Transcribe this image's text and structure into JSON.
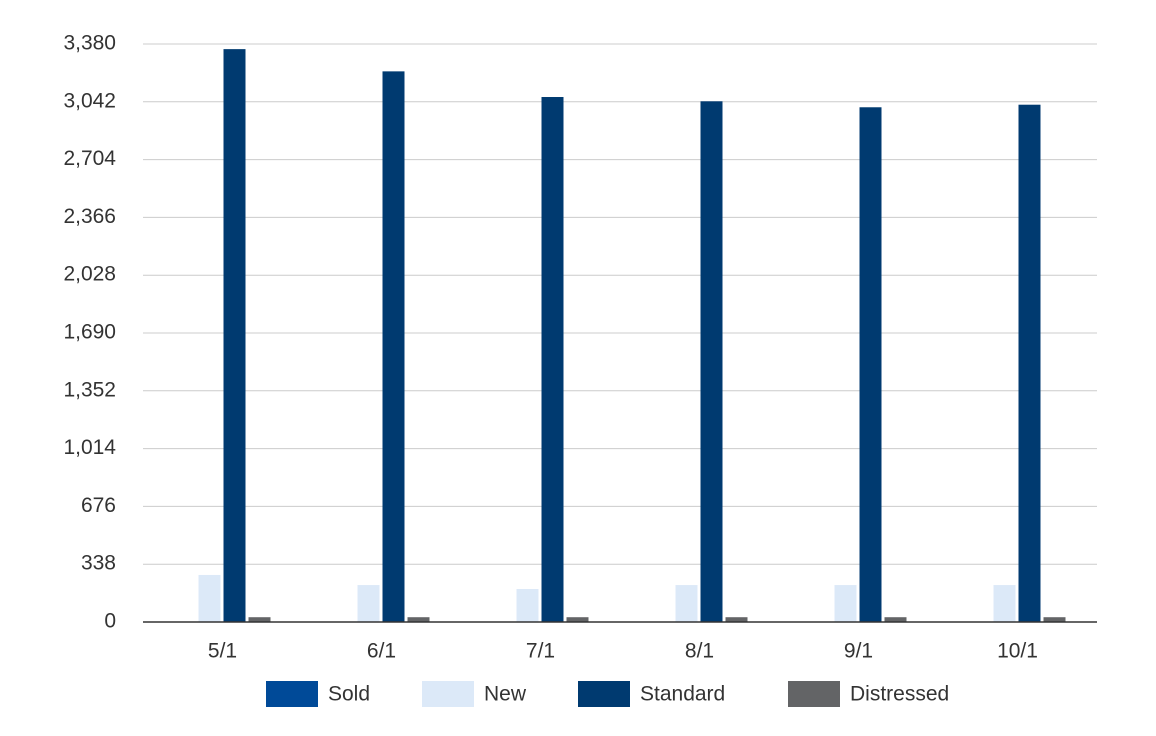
{
  "chart_data": {
    "type": "bar",
    "categories": [
      "5/1",
      "6/1",
      "7/1",
      "8/1",
      "9/1",
      "10/1"
    ],
    "series": [
      {
        "name": "Sold",
        "color": "#004a98",
        "values": [
          0,
          0,
          0,
          0,
          0,
          0
        ]
      },
      {
        "name": "New",
        "color": "#dce9f8",
        "values": [
          275,
          216,
          193,
          216,
          216,
          216
        ]
      },
      {
        "name": "Standard",
        "color": "#003a70",
        "values": [
          3350,
          3220,
          3070,
          3045,
          3010,
          3025
        ]
      },
      {
        "name": "Distressed",
        "color": "#636466",
        "values": [
          28,
          28,
          28,
          28,
          28,
          28
        ]
      }
    ],
    "ylim": [
      0,
      3380
    ],
    "yticks": [
      0,
      338,
      676,
      {
        "value": 1014,
        "label": "1,014"
      },
      {
        "value": 1352,
        "label": "1,352"
      },
      {
        "value": 1690,
        "label": "1,690"
      },
      {
        "value": 2028,
        "label": "2,028"
      },
      {
        "value": 2366,
        "label": "2,366"
      },
      {
        "value": 2704,
        "label": "2,704"
      },
      {
        "value": 3042,
        "label": "3,042"
      },
      {
        "value": 3380,
        "label": "3,380"
      }
    ],
    "grid": true,
    "legend": "bottom"
  }
}
